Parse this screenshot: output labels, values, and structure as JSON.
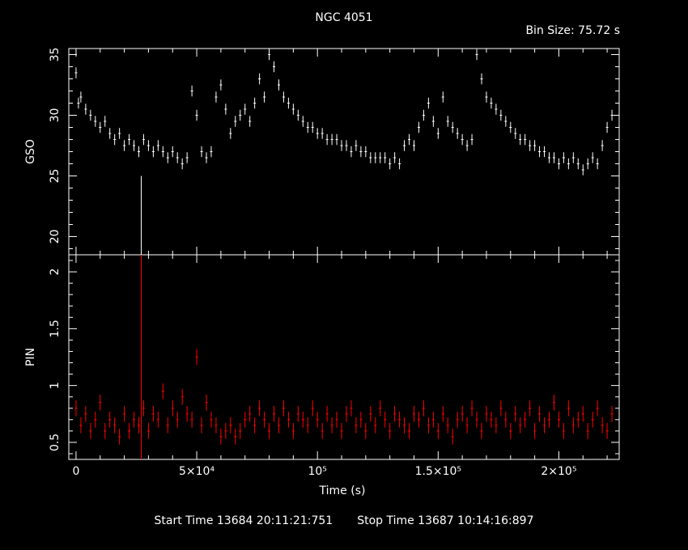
{
  "title": "NGC 4051",
  "bin_size_label": "Bin Size: 75.72 s",
  "start_time_label": "Start Time 13684 20:11:21:751",
  "stop_time_label": "Stop Time 13687 10:14:16:897",
  "colors": {
    "background": "#000000",
    "axes": "#ffffff",
    "gso": "#ffffff",
    "pin": "#ff0000"
  },
  "chart_data": [
    {
      "type": "scatter",
      "panel": "top",
      "ylabel": "GSO",
      "xlabel": "",
      "xlim": [
        -3000,
        225000
      ],
      "ylim": [
        18.5,
        35.5
      ],
      "yticks": [
        20,
        25,
        30,
        35
      ],
      "ytick_labels": [
        "20",
        "25",
        "30",
        "35"
      ],
      "series": [
        {
          "x": [
            0,
            1000,
            2000,
            4000,
            6000,
            8000,
            10000,
            12000,
            14000,
            16000,
            18000,
            20000,
            22000,
            24000,
            26000,
            28000,
            30000,
            32000,
            34000,
            36000,
            38000,
            40000,
            42000,
            44000,
            46000,
            48000,
            50000,
            52000,
            54000,
            56000,
            58000,
            60000,
            62000,
            64000,
            66000,
            68000,
            70000,
            72000,
            74000,
            76000,
            78000,
            80000,
            82000,
            84000,
            86000,
            88000,
            90000,
            92000,
            94000,
            96000,
            98000,
            100000,
            102000,
            104000,
            106000,
            108000,
            110000,
            112000,
            114000,
            116000,
            118000,
            120000,
            122000,
            124000,
            126000,
            128000,
            130000,
            132000,
            134000,
            136000,
            138000,
            140000,
            142000,
            144000,
            146000,
            148000,
            150000,
            152000,
            154000,
            156000,
            158000,
            160000,
            162000,
            164000,
            166000,
            168000,
            170000,
            172000,
            174000,
            176000,
            178000,
            180000,
            182000,
            184000,
            186000,
            188000,
            190000,
            192000,
            194000,
            196000,
            198000,
            200000,
            202000,
            204000,
            206000,
            208000,
            210000,
            212000,
            214000,
            216000,
            218000,
            220000,
            222000
          ],
          "y": [
            33.5,
            31.0,
            31.5,
            30.5,
            30.0,
            29.5,
            29.0,
            29.5,
            28.5,
            28.0,
            28.5,
            27.5,
            28.0,
            27.5,
            27.0,
            28.0,
            27.5,
            27.0,
            27.5,
            27.0,
            26.5,
            27.0,
            26.5,
            26.0,
            26.5,
            32.0,
            30.0,
            27.0,
            26.5,
            27.0,
            31.5,
            32.5,
            30.5,
            28.5,
            29.5,
            30.0,
            30.5,
            29.5,
            31.0,
            33.0,
            31.5,
            35.0,
            34.0,
            32.5,
            31.5,
            31.0,
            30.5,
            30.0,
            29.5,
            29.0,
            29.0,
            28.5,
            28.5,
            28.0,
            28.0,
            28.0,
            27.5,
            27.5,
            27.0,
            27.5,
            27.0,
            27.0,
            26.5,
            26.5,
            26.5,
            26.5,
            26.0,
            26.5,
            26.0,
            27.5,
            28.0,
            27.5,
            29.0,
            30.0,
            31.0,
            29.5,
            28.5,
            31.5,
            29.5,
            29.0,
            28.5,
            28.0,
            27.5,
            28.0,
            35.0,
            33.0,
            31.5,
            31.0,
            30.5,
            30.0,
            29.5,
            29.0,
            28.5,
            28.0,
            28.0,
            27.5,
            27.5,
            27.0,
            27.0,
            26.5,
            26.5,
            26.0,
            26.5,
            26.0,
            26.5,
            26.0,
            25.5,
            26.0,
            26.5,
            26.0,
            27.5,
            29.0,
            30.0
          ]
        }
      ],
      "annotations": [
        {
          "type": "vertical-line",
          "x": 27000,
          "y_from": 18.5,
          "y_to": 25.0
        }
      ]
    },
    {
      "type": "scatter",
      "panel": "bottom",
      "ylabel": "PIN",
      "xlabel": "Time (s)",
      "xlim": [
        -3000,
        225000
      ],
      "ylim": [
        0.35,
        2.15
      ],
      "xticks": [
        0,
        50000,
        100000,
        150000,
        200000
      ],
      "xtick_labels": [
        "0",
        "5×10⁴",
        "10⁵",
        "1.5×10⁵",
        "2×10⁵"
      ],
      "yticks": [
        0.5,
        1,
        1.5,
        2
      ],
      "ytick_labels": [
        "0.5",
        "1",
        "1.5",
        "2"
      ],
      "series": [
        {
          "x": [
            0,
            2000,
            4000,
            6000,
            8000,
            10000,
            12000,
            14000,
            16000,
            18000,
            20000,
            22000,
            24000,
            26000,
            28000,
            30000,
            32000,
            34000,
            36000,
            38000,
            40000,
            42000,
            44000,
            46000,
            48000,
            50000,
            52000,
            54000,
            56000,
            58000,
            60000,
            62000,
            64000,
            66000,
            68000,
            70000,
            72000,
            74000,
            76000,
            78000,
            80000,
            82000,
            84000,
            86000,
            88000,
            90000,
            92000,
            94000,
            96000,
            98000,
            100000,
            102000,
            104000,
            106000,
            108000,
            110000,
            112000,
            114000,
            116000,
            118000,
            120000,
            122000,
            124000,
            126000,
            128000,
            130000,
            132000,
            134000,
            136000,
            138000,
            140000,
            142000,
            144000,
            146000,
            148000,
            150000,
            152000,
            154000,
            156000,
            158000,
            160000,
            162000,
            164000,
            166000,
            168000,
            170000,
            172000,
            174000,
            176000,
            178000,
            180000,
            182000,
            184000,
            186000,
            188000,
            190000,
            192000,
            194000,
            196000,
            198000,
            200000,
            202000,
            204000,
            206000,
            208000,
            210000,
            212000,
            214000,
            216000,
            218000,
            220000,
            222000
          ],
          "y": [
            0.8,
            0.65,
            0.75,
            0.6,
            0.7,
            0.85,
            0.6,
            0.7,
            0.65,
            0.55,
            0.75,
            0.6,
            0.7,
            0.65,
            0.8,
            0.6,
            0.75,
            0.7,
            0.95,
            0.65,
            0.8,
            0.7,
            0.9,
            0.75,
            0.7,
            1.25,
            0.65,
            0.85,
            0.7,
            0.65,
            0.55,
            0.6,
            0.65,
            0.55,
            0.6,
            0.7,
            0.75,
            0.65,
            0.8,
            0.7,
            0.6,
            0.75,
            0.65,
            0.8,
            0.7,
            0.6,
            0.75,
            0.7,
            0.65,
            0.8,
            0.7,
            0.6,
            0.75,
            0.65,
            0.7,
            0.6,
            0.75,
            0.8,
            0.65,
            0.7,
            0.6,
            0.75,
            0.65,
            0.8,
            0.7,
            0.6,
            0.75,
            0.7,
            0.65,
            0.6,
            0.75,
            0.7,
            0.8,
            0.65,
            0.7,
            0.6,
            0.75,
            0.65,
            0.55,
            0.7,
            0.75,
            0.65,
            0.8,
            0.7,
            0.6,
            0.75,
            0.7,
            0.65,
            0.8,
            0.7,
            0.6,
            0.75,
            0.65,
            0.7,
            0.8,
            0.6,
            0.75,
            0.65,
            0.7,
            0.85,
            0.7,
            0.6,
            0.8,
            0.65,
            0.7,
            0.75,
            0.6,
            0.7,
            0.8,
            0.65,
            0.6,
            0.75
          ]
        }
      ],
      "annotations": [
        {
          "type": "vertical-line",
          "x": 27000,
          "y_from": 0.35,
          "y_to": 2.15
        }
      ]
    }
  ]
}
